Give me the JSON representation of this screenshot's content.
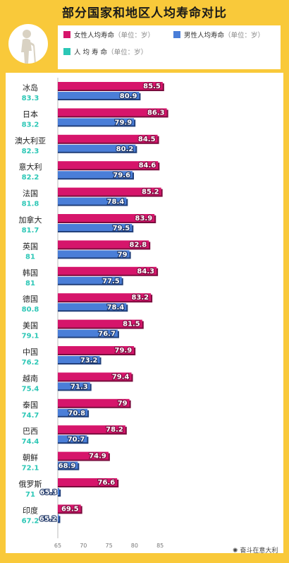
{
  "title": "部分国家和地区人均寿命对比",
  "legend": {
    "female": "女性人均寿命",
    "male": "男性人均寿命",
    "avg": "人 均 寿 命",
    "unit": "（单位：岁）"
  },
  "watermark": "奋斗在意大利",
  "colors": {
    "female": "#d6156b",
    "male": "#4a7ed8",
    "avg": "#2cc7b6",
    "background": "#f9c93a"
  },
  "icons": {
    "avatar": "elderly-person-with-cane-icon",
    "watermark": "wechat-logo-icon"
  },
  "chart_data": {
    "type": "bar",
    "orientation": "horizontal",
    "xlim": [
      65,
      90
    ],
    "x_ticks": [
      65,
      70,
      75,
      80,
      85
    ],
    "grid": false,
    "legend_position": "top",
    "categories": [
      "冰岛",
      "日本",
      "澳大利亚",
      "意大利",
      "法国",
      "加拿大",
      "英国",
      "韩国",
      "德国",
      "美国",
      "中国",
      "越南",
      "泰国",
      "巴西",
      "朝鲜",
      "俄罗斯",
      "印度"
    ],
    "average": [
      "83.3",
      "83.2",
      "82.3",
      "82.2",
      "81.8",
      "81.7",
      "81",
      "81",
      "80.8",
      "79.1",
      "76.2",
      "75.4",
      "74.7",
      "74.4",
      "72.1",
      "71",
      "67.2"
    ],
    "series": [
      {
        "name": "女性人均寿命",
        "values": [
          85.5,
          86.3,
          84.5,
          84.6,
          85.2,
          83.9,
          82.8,
          84.3,
          83.2,
          81.5,
          79.9,
          79.4,
          79,
          78.2,
          74.9,
          76.6,
          69.5
        ]
      },
      {
        "name": "男性人均寿命",
        "values": [
          80.9,
          79.9,
          80.2,
          79.6,
          78.4,
          79.5,
          79,
          77.5,
          78.4,
          76.7,
          73.2,
          71.3,
          70.8,
          70.7,
          68.9,
          65.3,
          65.2
        ]
      }
    ]
  }
}
